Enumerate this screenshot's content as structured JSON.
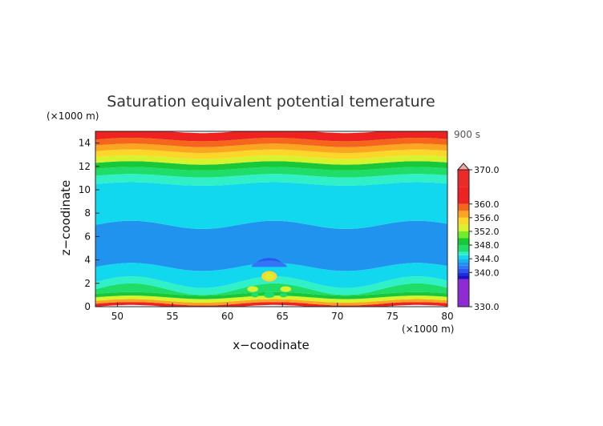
{
  "chart_data": {
    "type": "heatmap",
    "title": "Saturation equivalent potential temerature",
    "xlabel": "x−coodinate",
    "ylabel": "z−coodinate",
    "x_unit_label": "(×1000 m)",
    "y_unit_label": "(×1000 m)",
    "time_label": "900 s",
    "xlim": [
      48,
      80
    ],
    "ylim": [
      0,
      15
    ],
    "xticks": [
      50,
      55,
      60,
      65,
      70,
      75,
      80
    ],
    "yticks": [
      0,
      2,
      4,
      6,
      8,
      10,
      12,
      14
    ],
    "colorbar": {
      "min": 330,
      "max": 370,
      "tick_labels": [
        "370.0",
        "360.0",
        "356.0",
        "352.0",
        "348.0",
        "344.0",
        "340.0",
        "330.0"
      ],
      "tick_values": [
        370,
        360,
        356,
        352,
        348,
        344,
        340,
        330
      ],
      "levels": [
        {
          "from": 330,
          "to": 338,
          "color": "#8e2bd2"
        },
        {
          "from": 338,
          "to": 339,
          "color": "#1d0dc6"
        },
        {
          "from": 339,
          "to": 340,
          "color": "#1a2fdd"
        },
        {
          "from": 340,
          "to": 341,
          "color": "#2b55f0"
        },
        {
          "from": 341,
          "to": 342,
          "color": "#3276f7"
        },
        {
          "from": 342,
          "to": 343,
          "color": "#1f93ee"
        },
        {
          "from": 343,
          "to": 344,
          "color": "#13b5f2"
        },
        {
          "from": 344,
          "to": 345,
          "color": "#11d8ee"
        },
        {
          "from": 345,
          "to": 346,
          "color": "#2ff0c6"
        },
        {
          "from": 346,
          "to": 348,
          "color": "#1edd68"
        },
        {
          "from": 348,
          "to": 350,
          "color": "#19c838"
        },
        {
          "from": 350,
          "to": 352,
          "color": "#6cee2a"
        },
        {
          "from": 352,
          "to": 354,
          "color": "#d8f22e"
        },
        {
          "from": 354,
          "to": 356,
          "color": "#fcd629"
        },
        {
          "from": 356,
          "to": 358,
          "color": "#fca520"
        },
        {
          "from": 358,
          "to": 360,
          "color": "#f6651c"
        },
        {
          "from": 360,
          "to": 365,
          "color": "#ee2220"
        },
        {
          "from": 365,
          "to": 370,
          "color": "#ec2a2a"
        }
      ],
      "overflow_color": "#f7a3a3"
    },
    "bands_bottom_to_top": [
      {
        "z0": 0.0,
        "z1": 0.25,
        "value": 362
      },
      {
        "z0": 0.25,
        "z1": 0.5,
        "value": 357
      },
      {
        "z0": 0.5,
        "z1": 0.8,
        "value": 353
      },
      {
        "z0": 0.8,
        "z1": 1.1,
        "value": 349
      },
      {
        "z0": 1.1,
        "z1": 1.5,
        "value": 347
      },
      {
        "z0": 1.5,
        "z1": 2.1,
        "value": 345
      },
      {
        "z0": 2.1,
        "z1": 3.4,
        "value": 344
      },
      {
        "z0": 3.4,
        "z1": 7.0,
        "value": 342
      },
      {
        "z0": 7.0,
        "z1": 10.5,
        "value": 344
      },
      {
        "z0": 10.5,
        "z1": 11.2,
        "value": 345
      },
      {
        "z0": 11.2,
        "z1": 11.8,
        "value": 347
      },
      {
        "z0": 11.8,
        "z1": 12.3,
        "value": 349
      },
      {
        "z0": 12.3,
        "z1": 12.8,
        "value": 353
      },
      {
        "z0": 12.8,
        "z1": 13.3,
        "value": 355
      },
      {
        "z0": 13.3,
        "z1": 13.8,
        "value": 357
      },
      {
        "z0": 13.8,
        "z1": 14.3,
        "value": 359
      },
      {
        "z0": 14.3,
        "z1": 15.0,
        "value": 362
      }
    ],
    "features": [
      {
        "kind": "cap",
        "x": 63.8,
        "z": 3.6,
        "rx": 1.2,
        "rz": 0.6,
        "value": 340
      },
      {
        "kind": "cap",
        "x": 63.8,
        "z": 3.4,
        "rx": 1.6,
        "rz": 0.55,
        "value": 341
      },
      {
        "kind": "blob",
        "x": 63.8,
        "z": 2.6,
        "rx": 0.7,
        "rz": 0.45,
        "value": 355
      },
      {
        "kind": "blob",
        "x": 63.8,
        "z": 2.6,
        "rx": 0.4,
        "rz": 0.25,
        "value": 352
      },
      {
        "kind": "blob",
        "x": 62.3,
        "z": 1.5,
        "rx": 0.5,
        "rz": 0.25,
        "value": 353
      },
      {
        "kind": "blob",
        "x": 65.3,
        "z": 1.5,
        "rx": 0.5,
        "rz": 0.25,
        "value": 353
      },
      {
        "kind": "blob",
        "x": 62.5,
        "z": 1.0,
        "rx": 0.35,
        "rz": 0.2,
        "value": 347
      },
      {
        "kind": "blob",
        "x": 63.8,
        "z": 1.0,
        "rx": 0.5,
        "rz": 0.25,
        "value": 347
      },
      {
        "kind": "blob",
        "x": 65.1,
        "z": 1.0,
        "rx": 0.35,
        "rz": 0.2,
        "value": 347
      }
    ]
  }
}
